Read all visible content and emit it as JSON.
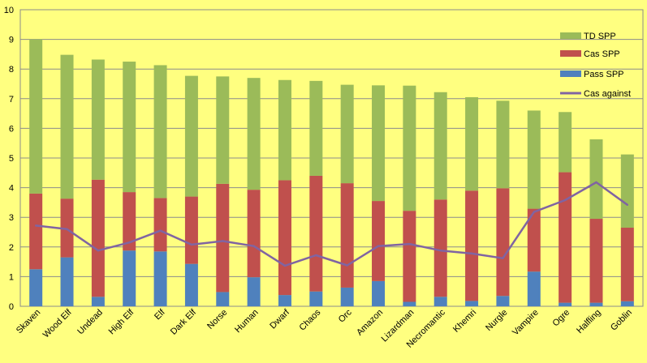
{
  "chart_data": {
    "type": "bar",
    "stacked": true,
    "categories": [
      "Skaven",
      "Wood Elf",
      "Undead",
      "High Elf",
      "Elf",
      "Dark Elf",
      "Norse",
      "Human",
      "Dwarf",
      "Chaos",
      "Orc",
      "Amazon",
      "Lizardman",
      "Necromantic",
      "Khemri",
      "Nurgle",
      "Vampire",
      "Ogre",
      "Halfling",
      "Goblin"
    ],
    "series": [
      {
        "name": "Pass SPP",
        "type": "bar",
        "color": "#4F81BD",
        "values": [
          1.25,
          1.65,
          0.32,
          1.88,
          1.85,
          1.43,
          0.48,
          0.98,
          0.38,
          0.5,
          0.63,
          0.85,
          0.15,
          0.32,
          0.18,
          0.35,
          1.17,
          0.12,
          0.12,
          0.17
        ]
      },
      {
        "name": "Cas SPP",
        "type": "bar",
        "color": "#C0504D",
        "values": [
          2.55,
          1.98,
          3.95,
          1.97,
          1.8,
          2.27,
          3.65,
          2.95,
          3.87,
          3.9,
          3.52,
          2.7,
          3.07,
          3.28,
          3.72,
          3.63,
          2.12,
          4.4,
          2.83,
          2.48
        ]
      },
      {
        "name": "TD SPP",
        "type": "bar",
        "color": "#9BBB59",
        "values": [
          5.2,
          4.85,
          4.05,
          4.4,
          4.48,
          4.07,
          3.62,
          3.77,
          3.38,
          3.2,
          3.32,
          3.9,
          4.22,
          3.62,
          3.15,
          2.95,
          3.31,
          2.03,
          2.68,
          2.47
        ]
      },
      {
        "name": "Cas against",
        "type": "line",
        "color": "#8064A2",
        "values": [
          2.72,
          2.6,
          1.88,
          2.15,
          2.55,
          2.08,
          2.2,
          2.03,
          1.37,
          1.72,
          1.38,
          2.03,
          2.1,
          1.88,
          1.78,
          1.62,
          3.18,
          3.58,
          4.18,
          3.42
        ]
      }
    ],
    "ylim": [
      0,
      10
    ],
    "yticks": [
      0,
      1,
      2,
      3,
      4,
      5,
      6,
      7,
      8,
      9,
      10
    ],
    "grid": true,
    "legend": {
      "placement": "right",
      "entries": [
        {
          "label": "TD SPP",
          "color": "#9BBB59",
          "kind": "bar"
        },
        {
          "label": "Cas SPP",
          "color": "#C0504D",
          "kind": "bar"
        },
        {
          "label": "Pass SPP",
          "color": "#4F81BD",
          "kind": "bar"
        },
        {
          "label": "Cas against",
          "color": "#8064A2",
          "kind": "line"
        }
      ]
    },
    "title": "",
    "xlabel": "",
    "ylabel": ""
  }
}
